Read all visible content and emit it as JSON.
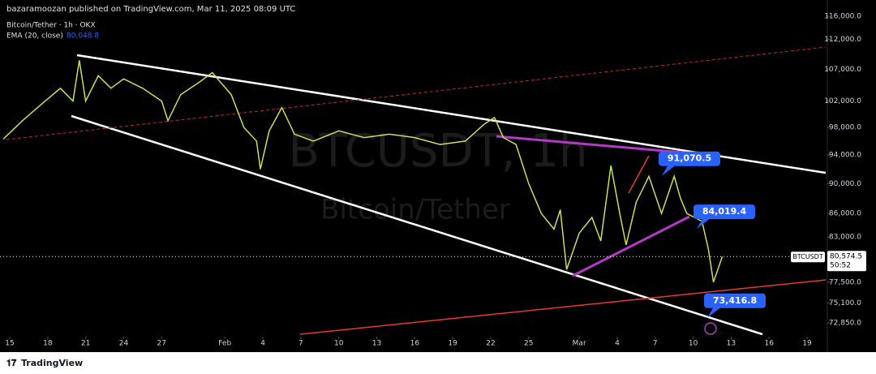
{
  "header": {
    "publisher": "bazaramoozan published on TradingView.com, Mar 11, 2025 08:09 UTC",
    "symbol": "Bitcoin/Tether · 1h · OKX",
    "indicator": "EMA (20, close)",
    "indicator_value": "80,048.8"
  },
  "watermark": {
    "symbol": "BTCUSDT, 1h",
    "name": "Bitcoin/Tether"
  },
  "chart_data": {
    "type": "line",
    "log_scale": true,
    "x": [
      -0.5,
      1,
      2.5,
      4,
      5,
      5.5,
      6,
      7,
      8,
      9,
      10.5,
      12,
      12.5,
      13.5,
      15,
      16,
      17.5,
      18.5,
      19.5,
      19.8,
      20.5,
      21.5,
      22.5,
      24,
      26,
      28,
      30,
      32,
      34,
      36,
      37.5,
      38.3,
      39,
      40,
      41,
      42,
      43,
      43.5,
      44,
      45,
      46,
      46.7,
      47.5,
      48.2,
      48.7,
      49.5,
      50.5,
      51.5,
      52.5,
      53,
      53.5,
      54.7,
      55.2,
      55.6,
      56.3
    ],
    "series": [
      {
        "name": "BTCUSDT",
        "color": "#c6e25a",
        "values": [
          96300,
          99000,
          101500,
          104000,
          102000,
          108500,
          102000,
          106000,
          104000,
          105500,
          104000,
          102000,
          99000,
          103000,
          105000,
          106500,
          103000,
          98000,
          96000,
          92000,
          97500,
          101000,
          97000,
          96000,
          97500,
          96500,
          97000,
          96500,
          95500,
          96000,
          98500,
          99500,
          96500,
          95500,
          90000,
          86000,
          84000,
          86500,
          79000,
          83500,
          85500,
          82500,
          92500,
          86000,
          82000,
          87500,
          91000,
          86000,
          91000,
          88000,
          86000,
          85000,
          81500,
          77500,
          80574.5
        ]
      }
    ],
    "xlim": [
      -0.77,
      64.6
    ],
    "ylim": [
      71350,
      118900
    ],
    "xticks": [
      {
        "value": 0,
        "label": "15"
      },
      {
        "value": 3,
        "label": "18"
      },
      {
        "value": 6,
        "label": "21"
      },
      {
        "value": 9,
        "label": "24"
      },
      {
        "value": 12,
        "label": "27"
      },
      {
        "value": 17,
        "label": "Feb"
      },
      {
        "value": 20,
        "label": "4"
      },
      {
        "value": 23,
        "label": "7"
      },
      {
        "value": 26,
        "label": "10"
      },
      {
        "value": 29,
        "label": "13"
      },
      {
        "value": 32,
        "label": "16"
      },
      {
        "value": 35,
        "label": "19"
      },
      {
        "value": 38,
        "label": "22"
      },
      {
        "value": 41,
        "label": "25"
      },
      {
        "value": 45,
        "label": "Mar"
      },
      {
        "value": 48,
        "label": "4"
      },
      {
        "value": 51,
        "label": "7"
      },
      {
        "value": 54,
        "label": "10"
      },
      {
        "value": 57,
        "label": "13"
      },
      {
        "value": 60,
        "label": "16"
      },
      {
        "value": 63,
        "label": "19"
      }
    ],
    "yticks": [
      {
        "value": 116000,
        "label": "116,000.0"
      },
      {
        "value": 112000,
        "label": "112,000.0"
      },
      {
        "value": 107000,
        "label": "107,000.0"
      },
      {
        "value": 102000,
        "label": "102,000.0"
      },
      {
        "value": 98000,
        "label": "98,000.0"
      },
      {
        "value": 94000,
        "label": "94,000.0"
      },
      {
        "value": 90000,
        "label": "90,000.0"
      },
      {
        "value": 86000,
        "label": "86,000.0"
      },
      {
        "value": 83000,
        "label": "83,000.0"
      },
      {
        "value": 77500,
        "label": "77,500.0"
      },
      {
        "value": 75100,
        "label": "75,100.0"
      },
      {
        "value": 72850,
        "label": "72,850.0"
      }
    ],
    "last_price": {
      "value": 80574.5,
      "label": "80,574.5",
      "countdown": "50:52"
    },
    "annotations": [
      {
        "value": 91070.5,
        "label": "91,070.5"
      },
      {
        "value": 84019.4,
        "label": "84,019.4"
      },
      {
        "value": 73416.8,
        "label": "73,416.8"
      }
    ]
  },
  "footer": {
    "brand": "TradingView"
  }
}
